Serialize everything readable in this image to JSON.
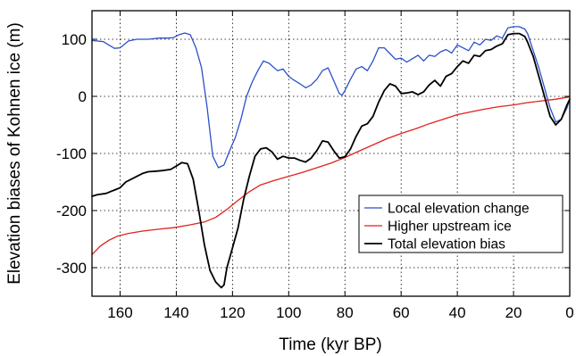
{
  "chart_data": {
    "type": "line",
    "title": "",
    "xlabel": "Time (kyr BP)",
    "ylabel": "Elevation biases of Kohnen ice (m)",
    "xlim": [
      170,
      0
    ],
    "ylim": [
      -350,
      150
    ],
    "x_ticks": [
      160,
      140,
      120,
      100,
      80,
      60,
      40,
      20,
      0
    ],
    "y_ticks": [
      100,
      0,
      -100,
      -200,
      -300
    ],
    "grid": true,
    "legend_position": "bottom-right",
    "series": [
      {
        "name": "Local elevation change",
        "color": "#2b50c8",
        "points": [
          [
            170,
            98
          ],
          [
            166,
            96
          ],
          [
            164,
            90
          ],
          [
            162,
            84
          ],
          [
            160,
            85
          ],
          [
            157,
            97
          ],
          [
            154,
            100
          ],
          [
            150,
            100
          ],
          [
            146,
            102
          ],
          [
            143,
            102
          ],
          [
            141,
            103
          ],
          [
            139,
            108
          ],
          [
            137,
            111
          ],
          [
            135,
            108
          ],
          [
            133,
            85
          ],
          [
            131,
            50
          ],
          [
            129,
            -20
          ],
          [
            127,
            -105
          ],
          [
            125,
            -125
          ],
          [
            123,
            -120
          ],
          [
            121,
            -95
          ],
          [
            119,
            -72
          ],
          [
            117,
            -40
          ],
          [
            115,
            0
          ],
          [
            113,
            25
          ],
          [
            111,
            45
          ],
          [
            109,
            62
          ],
          [
            107,
            58
          ],
          [
            104,
            45
          ],
          [
            102,
            48
          ],
          [
            100,
            35
          ],
          [
            98,
            28
          ],
          [
            96,
            22
          ],
          [
            94,
            15
          ],
          [
            92,
            20
          ],
          [
            90,
            30
          ],
          [
            88,
            45
          ],
          [
            86,
            50
          ],
          [
            84,
            28
          ],
          [
            82,
            5
          ],
          [
            81,
            2
          ],
          [
            80,
            10
          ],
          [
            78,
            30
          ],
          [
            76,
            48
          ],
          [
            74,
            52
          ],
          [
            72,
            45
          ],
          [
            70,
            62
          ],
          [
            68,
            85
          ],
          [
            66,
            85
          ],
          [
            64,
            75
          ],
          [
            62,
            65
          ],
          [
            60,
            67
          ],
          [
            58,
            60
          ],
          [
            56,
            66
          ],
          [
            54,
            72
          ],
          [
            52,
            62
          ],
          [
            50,
            72
          ],
          [
            48,
            70
          ],
          [
            46,
            78
          ],
          [
            44,
            82
          ],
          [
            42,
            76
          ],
          [
            40,
            90
          ],
          [
            38,
            85
          ],
          [
            36,
            80
          ],
          [
            34,
            95
          ],
          [
            32,
            90
          ],
          [
            30,
            100
          ],
          [
            28,
            98
          ],
          [
            26,
            106
          ],
          [
            24,
            102
          ],
          [
            22,
            120
          ],
          [
            20,
            122
          ],
          [
            18,
            122
          ],
          [
            16,
            118
          ],
          [
            15,
            110
          ],
          [
            13,
            80
          ],
          [
            11,
            50
          ],
          [
            9,
            15
          ],
          [
            7,
            -20
          ],
          [
            5,
            -45
          ],
          [
            3,
            -40
          ],
          [
            1,
            -20
          ],
          [
            0,
            -5
          ]
        ]
      },
      {
        "name": "Higher upstream ice",
        "color": "#e0221b",
        "points": [
          [
            170,
            -277
          ],
          [
            167,
            -262
          ],
          [
            164,
            -252
          ],
          [
            161,
            -245
          ],
          [
            157,
            -240
          ],
          [
            152,
            -236
          ],
          [
            147,
            -233
          ],
          [
            141,
            -230
          ],
          [
            135,
            -225
          ],
          [
            130,
            -220
          ],
          [
            126,
            -212
          ],
          [
            122,
            -198
          ],
          [
            118,
            -182
          ],
          [
            114,
            -167
          ],
          [
            110,
            -155
          ],
          [
            105,
            -147
          ],
          [
            100,
            -140
          ],
          [
            95,
            -133
          ],
          [
            90,
            -125
          ],
          [
            85,
            -117
          ],
          [
            80,
            -107
          ],
          [
            75,
            -96
          ],
          [
            70,
            -85
          ],
          [
            65,
            -74
          ],
          [
            60,
            -65
          ],
          [
            55,
            -57
          ],
          [
            50,
            -48
          ],
          [
            45,
            -40
          ],
          [
            40,
            -32
          ],
          [
            35,
            -27
          ],
          [
            30,
            -22
          ],
          [
            25,
            -18
          ],
          [
            20,
            -15
          ],
          [
            15,
            -11
          ],
          [
            10,
            -8
          ],
          [
            5,
            -5
          ],
          [
            0,
            -1
          ]
        ]
      },
      {
        "name": "Total elevation bias",
        "color": "#000000",
        "points": [
          [
            170,
            -175
          ],
          [
            168,
            -172
          ],
          [
            165,
            -170
          ],
          [
            162,
            -164
          ],
          [
            160,
            -160
          ],
          [
            158,
            -150
          ],
          [
            156,
            -145
          ],
          [
            154,
            -140
          ],
          [
            152,
            -135
          ],
          [
            150,
            -132
          ],
          [
            147,
            -131
          ],
          [
            145,
            -130
          ],
          [
            142,
            -128
          ],
          [
            140,
            -122
          ],
          [
            138,
            -116
          ],
          [
            136,
            -118
          ],
          [
            134,
            -145
          ],
          [
            132,
            -200
          ],
          [
            130,
            -260
          ],
          [
            128,
            -305
          ],
          [
            126,
            -325
          ],
          [
            124,
            -335
          ],
          [
            123,
            -330
          ],
          [
            122,
            -300
          ],
          [
            120,
            -265
          ],
          [
            118,
            -230
          ],
          [
            116,
            -180
          ],
          [
            114,
            -140
          ],
          [
            112,
            -105
          ],
          [
            110,
            -92
          ],
          [
            108,
            -90
          ],
          [
            106,
            -97
          ],
          [
            104,
            -110
          ],
          [
            102,
            -105
          ],
          [
            100,
            -108
          ],
          [
            98,
            -108
          ],
          [
            96,
            -112
          ],
          [
            94,
            -115
          ],
          [
            92,
            -108
          ],
          [
            90,
            -95
          ],
          [
            88,
            -78
          ],
          [
            86,
            -80
          ],
          [
            84,
            -95
          ],
          [
            82,
            -108
          ],
          [
            80,
            -106
          ],
          [
            78,
            -92
          ],
          [
            76,
            -70
          ],
          [
            74,
            -52
          ],
          [
            72,
            -48
          ],
          [
            70,
            -35
          ],
          [
            68,
            -10
          ],
          [
            66,
            10
          ],
          [
            64,
            22
          ],
          [
            62,
            18
          ],
          [
            60,
            5
          ],
          [
            58,
            6
          ],
          [
            56,
            8
          ],
          [
            54,
            3
          ],
          [
            52,
            8
          ],
          [
            50,
            20
          ],
          [
            48,
            28
          ],
          [
            46,
            18
          ],
          [
            44,
            35
          ],
          [
            42,
            40
          ],
          [
            40,
            52
          ],
          [
            38,
            62
          ],
          [
            36,
            58
          ],
          [
            34,
            72
          ],
          [
            32,
            70
          ],
          [
            30,
            80
          ],
          [
            28,
            82
          ],
          [
            26,
            88
          ],
          [
            24,
            92
          ],
          [
            22,
            108
          ],
          [
            20,
            110
          ],
          [
            18,
            110
          ],
          [
            16,
            105
          ],
          [
            15,
            95
          ],
          [
            13,
            70
          ],
          [
            11,
            35
          ],
          [
            9,
            0
          ],
          [
            7,
            -35
          ],
          [
            5,
            -50
          ],
          [
            3,
            -40
          ],
          [
            1,
            -15
          ],
          [
            0,
            -5
          ]
        ]
      }
    ]
  }
}
